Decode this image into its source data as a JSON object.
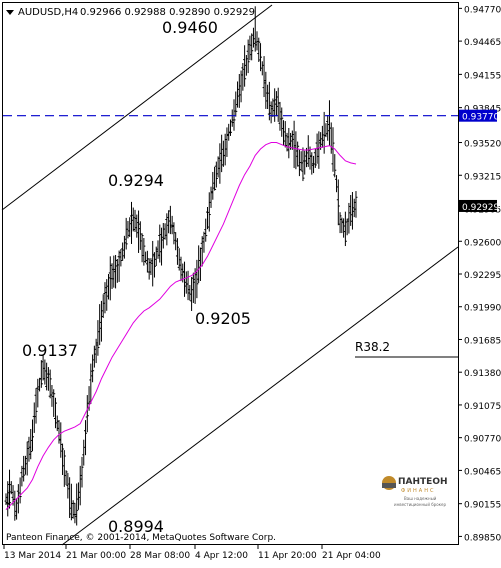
{
  "header": {
    "symbol": "AUDUSD,H4",
    "ohlc": "0.92966 0.92988 0.92890 0.92929"
  },
  "footer": {
    "copyright": "Panteon Finance, © 2001-2014, MetaQuotes Software Corp."
  },
  "logo": {
    "name": "ПАНТЕОН",
    "sub": "ФИНАНС",
    "caption1": "Ваш надежный",
    "caption2": "инвестиционный брокер"
  },
  "colors": {
    "candles": "#000000",
    "moving_average": "#e000e0",
    "level_line": "#0000cc",
    "level_badge_bg": "#0000cc",
    "price_badge_bg": "#000000"
  },
  "chart_data": {
    "type": "line",
    "title": "AUDUSD,H4",
    "ylim": [
      0.8977,
      0.9482
    ],
    "y_ticks": [
      "0.94770",
      "0.94465",
      "0.94155",
      "0.93845",
      "0.93520",
      "0.93215",
      "0.92905",
      "0.92600",
      "0.92295",
      "0.91990",
      "0.91685",
      "0.91380",
      "0.91075",
      "0.90770",
      "0.90465",
      "0.90155",
      "0.89850"
    ],
    "x_ticks": [
      "13 Mar 2014",
      "21 Mar 00:00",
      "28 Mar 08:00",
      "4 Apr 12:00",
      "11 Apr 20:00",
      "21 Apr 04:00"
    ],
    "current_price": "0.92929",
    "horizontal_level": "0.93770",
    "annotations": [
      "0.9460",
      "0.9294",
      "0.9205",
      "0.9137",
      "0.8994",
      "R38.2"
    ],
    "channel": {
      "upper": [
        {
          "x": "13 Mar 2014",
          "y": 0.9298
        },
        {
          "x": "11 Apr 20:00",
          "y": 0.9505
        }
      ],
      "lower": [
        {
          "x": "21 Mar 00:00",
          "y": 0.8994
        },
        {
          "x": "end",
          "y": 0.9265
        }
      ]
    },
    "series": [
      {
        "name": "",
        "type": "close",
        "values": [
          0.902,
          0.903,
          0.901,
          0.904,
          0.906,
          0.908,
          0.912,
          0.914,
          0.913,
          0.911,
          0.908,
          0.905,
          0.902,
          0.9005,
          0.903,
          0.908,
          0.913,
          0.916,
          0.919,
          0.921,
          0.923,
          0.9235,
          0.925,
          0.927,
          0.928,
          0.927,
          0.925,
          0.9235,
          0.924,
          0.9255,
          0.927,
          0.928,
          0.926,
          0.9235,
          0.922,
          0.921,
          0.9225,
          0.925,
          0.928,
          0.931,
          0.933,
          0.934,
          0.936,
          0.938,
          0.94,
          0.942,
          0.944,
          0.9455,
          0.943,
          0.94,
          0.938,
          0.939,
          0.937,
          0.935,
          0.9355,
          0.934,
          0.933,
          0.934,
          0.933,
          0.935,
          0.936,
          0.937,
          0.933,
          0.928,
          0.927,
          0.9285,
          0.9293
        ]
      },
      {
        "name": "",
        "type": "moving-average",
        "values": [
          0.901,
          0.9015,
          0.902,
          0.9025,
          0.903,
          0.9038,
          0.905,
          0.906,
          0.9068,
          0.9075,
          0.908,
          0.9083,
          0.9085,
          0.9087,
          0.909,
          0.91,
          0.911,
          0.912,
          0.9132,
          0.9142,
          0.9152,
          0.916,
          0.9168,
          0.9176,
          0.9184,
          0.919,
          0.9195,
          0.9198,
          0.9202,
          0.9206,
          0.9212,
          0.9218,
          0.9222,
          0.9224,
          0.9226,
          0.9228,
          0.9232,
          0.9238,
          0.9246,
          0.9256,
          0.9266,
          0.9276,
          0.9288,
          0.93,
          0.9312,
          0.9322,
          0.933,
          0.934,
          0.9346,
          0.935,
          0.9352,
          0.9352,
          0.935,
          0.9348,
          0.9347,
          0.9346,
          0.9345,
          0.9345,
          0.9346,
          0.9347,
          0.9348,
          0.9349,
          0.9346,
          0.934,
          0.9335,
          0.9333,
          0.9332
        ]
      }
    ]
  }
}
